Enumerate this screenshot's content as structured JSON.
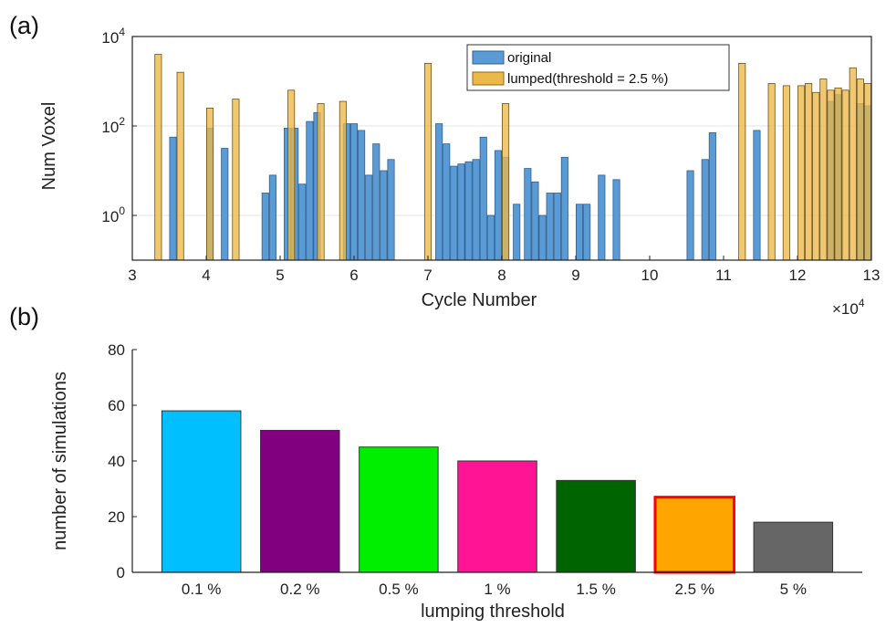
{
  "panels": {
    "a": "(a)",
    "b": "(b)"
  },
  "chart_data": [
    {
      "id": "a",
      "type": "bar",
      "xlabel": "Cycle Number",
      "ylabel": "Num Voxel",
      "x_scale_label": "×10",
      "x_scale_exp": "4",
      "xlim": [
        3,
        13
      ],
      "x_ticks": [
        3,
        4,
        5,
        6,
        7,
        8,
        9,
        10,
        11,
        12,
        13
      ],
      "yscale": "log",
      "ylim_exp": [
        -1,
        4
      ],
      "y_ticks": [
        {
          "base": "10",
          "exp": "0",
          "v": 0
        },
        {
          "base": "10",
          "exp": "2",
          "v": 2
        },
        {
          "base": "10",
          "exp": "4",
          "v": 4
        }
      ],
      "grid": true,
      "legend_position": "top-right",
      "legend": [
        "original",
        "lumped(threshold = 2.5 %)"
      ],
      "colors": {
        "original": "#5b9bd5",
        "lumped": "#ecb84a"
      },
      "bar_width": 0.09,
      "original": [
        [
          3.55,
          1.75
        ],
        [
          4.05,
          1.95
        ],
        [
          4.25,
          1.5
        ],
        [
          4.8,
          0.5
        ],
        [
          4.9,
          0.9
        ],
        [
          5.1,
          1.95
        ],
        [
          5.2,
          1.95
        ],
        [
          5.3,
          0.7
        ],
        [
          5.4,
          2.1
        ],
        [
          5.5,
          2.3
        ],
        [
          5.9,
          2.05
        ],
        [
          6.0,
          2.05
        ],
        [
          6.1,
          1.9
        ],
        [
          6.2,
          0.9
        ],
        [
          6.3,
          1.6
        ],
        [
          6.4,
          1.0
        ],
        [
          6.5,
          1.25
        ],
        [
          7.15,
          2.05
        ],
        [
          7.25,
          1.6
        ],
        [
          7.35,
          1.1
        ],
        [
          7.45,
          1.15
        ],
        [
          7.55,
          1.2
        ],
        [
          7.65,
          1.25
        ],
        [
          7.75,
          1.75
        ],
        [
          7.85,
          0.0
        ],
        [
          7.95,
          1.45
        ],
        [
          8.05,
          1.3
        ],
        [
          8.2,
          0.25
        ],
        [
          8.35,
          1.05
        ],
        [
          8.45,
          0.75
        ],
        [
          8.55,
          0.0
        ],
        [
          8.65,
          0.5
        ],
        [
          8.75,
          0.5
        ],
        [
          8.85,
          1.3
        ],
        [
          9.05,
          0.25
        ],
        [
          9.15,
          0.25
        ],
        [
          9.35,
          0.9
        ],
        [
          9.55,
          0.8
        ],
        [
          10.55,
          1.0
        ],
        [
          10.75,
          1.25
        ],
        [
          10.85,
          1.85
        ],
        [
          11.45,
          1.9
        ],
        [
          12.45,
          2.55
        ],
        [
          12.55,
          2.7
        ],
        [
          12.85,
          2.5
        ],
        [
          12.95,
          2.45
        ]
      ],
      "lumped": [
        [
          3.35,
          3.6
        ],
        [
          3.65,
          3.2
        ],
        [
          4.05,
          2.4
        ],
        [
          4.4,
          2.6
        ],
        [
          5.15,
          2.8
        ],
        [
          5.55,
          2.5
        ],
        [
          5.85,
          2.55
        ],
        [
          7.0,
          3.4
        ],
        [
          8.05,
          2.5
        ],
        [
          11.25,
          3.4
        ],
        [
          11.65,
          2.95
        ],
        [
          11.85,
          2.9
        ],
        [
          12.05,
          2.9
        ],
        [
          12.15,
          2.95
        ],
        [
          12.25,
          2.75
        ],
        [
          12.35,
          3.05
        ],
        [
          12.45,
          2.8
        ],
        [
          12.55,
          2.85
        ],
        [
          12.65,
          2.8
        ],
        [
          12.75,
          3.3
        ],
        [
          12.85,
          3.05
        ],
        [
          12.95,
          2.95
        ]
      ]
    },
    {
      "id": "b",
      "type": "bar",
      "xlabel": "lumping threshold",
      "ylabel": "number of simulations",
      "categories": [
        "0.1 %",
        "0.2 %",
        "0.5 %",
        "1 %",
        "1.5 %",
        "2.5 %",
        "5 %"
      ],
      "values": [
        58,
        51,
        45,
        40,
        33,
        27,
        18
      ],
      "colors": [
        "#00bfff",
        "#800080",
        "#00ee00",
        "#ff1493",
        "#006400",
        "#ffa500",
        "#666666"
      ],
      "highlight": "2.5 %",
      "highlight_color": "#ff0000",
      "ylim": [
        0,
        80
      ],
      "y_ticks": [
        0,
        20,
        40,
        60,
        80
      ]
    }
  ]
}
